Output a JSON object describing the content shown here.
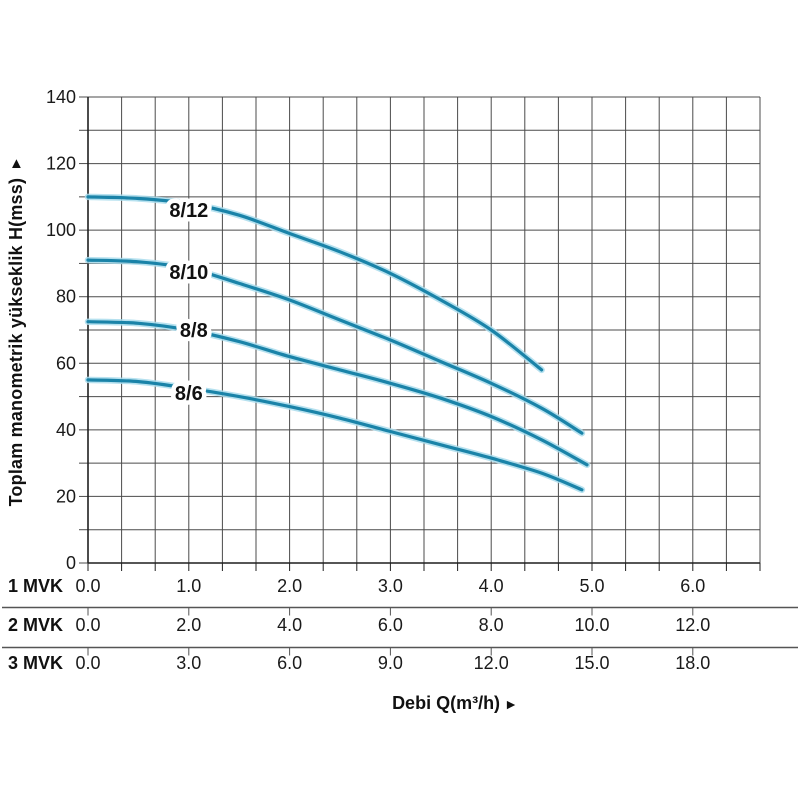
{
  "figure": {
    "y_axis_title": "Toplam manometrik yükseklik H(mss)",
    "y_axis_arrow": "▲",
    "x_axis_title": "Debi Q(m³/h)",
    "x_axis_arrow": "►"
  },
  "chart_data": {
    "type": "line",
    "title": "",
    "ylabel": "Toplam manometrik yükseklik H(mss)",
    "xlabel": "Debi Q(m³/h)",
    "ylim": [
      0,
      140
    ],
    "y_tick_values": [
      0,
      20,
      40,
      60,
      80,
      100,
      120,
      140
    ],
    "y_tick_labels": [
      "0",
      "20",
      "40",
      "60",
      "80",
      "100",
      "120",
      "140"
    ],
    "y_minor_step": 10,
    "xlim_1mvk": [
      0,
      6.6667
    ],
    "x_minor_divisions": 20,
    "x_major_positions_1mvk": [
      0,
      1,
      2,
      3,
      4,
      5,
      6
    ],
    "grid": true,
    "legend_position": "inline-curve-labels",
    "x_scale_rows": [
      {
        "label": "1 MVK",
        "tick_labels": [
          "0.0",
          "1.0",
          "2.0",
          "3.0",
          "4.0",
          "5.0",
          "6.0"
        ]
      },
      {
        "label": "2 MVK",
        "tick_labels": [
          "0.0",
          "2.0",
          "4.0",
          "6.0",
          "8.0",
          "10.0",
          "12.0"
        ]
      },
      {
        "label": "3 MVK",
        "tick_labels": [
          "0.0",
          "3.0",
          "6.0",
          "9.0",
          "12.0",
          "15.0",
          "18.0"
        ]
      }
    ],
    "x_units_note": "series x values are on the 1 MVK scale",
    "colors": {
      "curve": "#1a83a8",
      "curve_halo": "#a9dcec",
      "grid": "#4b4b4b",
      "axis": "#1f1f1f",
      "divider": "#555555",
      "text": "#1a1a1a"
    },
    "series": [
      {
        "name": "8/12",
        "label_pos": {
          "x": 1.0,
          "y": 106
        },
        "points": [
          [
            0,
            110
          ],
          [
            0.5,
            109.5
          ],
          [
            1.0,
            108
          ],
          [
            1.5,
            104.5
          ],
          [
            2.0,
            99
          ],
          [
            2.5,
            93.5
          ],
          [
            3.0,
            87
          ],
          [
            3.5,
            79
          ],
          [
            4.0,
            70
          ],
          [
            4.5,
            58
          ]
        ]
      },
      {
        "name": "8/10",
        "label_pos": {
          "x": 1.0,
          "y": 87.5
        },
        "points": [
          [
            0,
            91
          ],
          [
            0.5,
            90.5
          ],
          [
            1.0,
            88.5
          ],
          [
            1.5,
            84
          ],
          [
            2.0,
            79
          ],
          [
            2.5,
            73
          ],
          [
            3.0,
            67
          ],
          [
            3.5,
            60.5
          ],
          [
            4.0,
            54
          ],
          [
            4.5,
            46.5
          ],
          [
            4.9,
            39
          ]
        ]
      },
      {
        "name": "8/8",
        "label_pos": {
          "x": 1.05,
          "y": 70
        },
        "points": [
          [
            0,
            72.5
          ],
          [
            0.5,
            72
          ],
          [
            1.0,
            70
          ],
          [
            1.5,
            66.5
          ],
          [
            2.0,
            62
          ],
          [
            2.5,
            58
          ],
          [
            3.0,
            54
          ],
          [
            3.5,
            49.5
          ],
          [
            4.0,
            44
          ],
          [
            4.5,
            37
          ],
          [
            4.95,
            29.5
          ]
        ]
      },
      {
        "name": "8/6",
        "label_pos": {
          "x": 1.0,
          "y": 51
        },
        "points": [
          [
            0,
            55
          ],
          [
            0.5,
            54.5
          ],
          [
            1.0,
            52.5
          ],
          [
            1.5,
            50
          ],
          [
            2.0,
            47
          ],
          [
            2.5,
            43.5
          ],
          [
            3.0,
            39.5
          ],
          [
            3.5,
            35.5
          ],
          [
            4.0,
            31.5
          ],
          [
            4.5,
            27
          ],
          [
            4.9,
            22
          ]
        ]
      }
    ]
  }
}
